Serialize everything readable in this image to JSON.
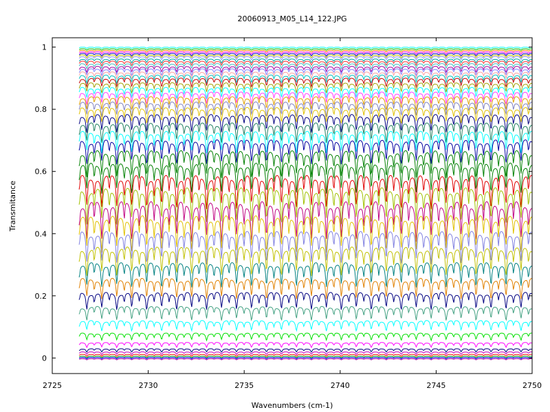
{
  "chart_data": {
    "type": "line",
    "title": "20060913_M05_L14_122.JPG",
    "xlabel": "Wavenumbers (cm-1)",
    "ylabel": "Transmitance",
    "xlim": [
      2725,
      2750
    ],
    "ylim": [
      -0.05,
      1.03
    ],
    "x_ticks": [
      2725,
      2730,
      2735,
      2740,
      2745,
      2750
    ],
    "y_ticks": [
      0,
      0.2,
      0.4,
      0.6,
      0.8,
      1
    ],
    "x_tick_labels": [
      "2725",
      "2730",
      "2735",
      "2740",
      "2745",
      "2750"
    ],
    "y_tick_labels": [
      "0",
      "0.2",
      "0.4",
      "0.6",
      "0.8",
      "1"
    ],
    "data_x_range": [
      2726.4,
      2750
    ],
    "grid": false,
    "legend": "none",
    "line_spacing_cm1": 0.39,
    "line_first_cm1": 2726.8,
    "series_baselines": [
      1.0,
      0.995,
      0.99,
      0.985,
      0.98,
      0.975,
      0.97,
      0.962,
      0.955,
      0.947,
      0.938,
      0.93,
      0.92,
      0.91,
      0.9,
      0.885,
      0.87,
      0.855,
      0.84,
      0.823,
      0.805,
      0.782,
      0.755,
      0.728,
      0.7,
      0.665,
      0.625,
      0.585,
      0.545,
      0.5,
      0.455,
      0.405,
      0.355,
      0.305,
      0.255,
      0.21,
      0.165,
      0.12,
      0.08,
      0.05,
      0.03,
      0.02,
      0.012,
      0.006,
      0.002,
      -0.002
    ],
    "series_colors": [
      "#00ffff",
      "#00c000",
      "#ff8000",
      "#ff00ff",
      "#0000c0",
      "#c0c000",
      "#9090ff",
      "#00a0a0",
      "#ff3030",
      "#40c0c0",
      "#a000a0",
      "#8080ff",
      "#ffa0a0",
      "#00c0c0",
      "#c00000",
      "#a0a000",
      "#00ffff",
      "#ff40ff",
      "#e0a000",
      "#8080c0",
      "#e0c000",
      "#000080",
      "#208060",
      "#00ffff",
      "#0000a0",
      "#008000",
      "#008000",
      "#e00000",
      "#a0c000",
      "#c00080",
      "#e0c000",
      "#8080e0",
      "#c0c000",
      "#008080",
      "#e08000",
      "#000080",
      "#40a080",
      "#00ffff",
      "#00e000",
      "#ff00ff",
      "#000080",
      "#c000c0",
      "#ff0000",
      "#00a000",
      "#0000ff",
      "#a000a0"
    ]
  }
}
